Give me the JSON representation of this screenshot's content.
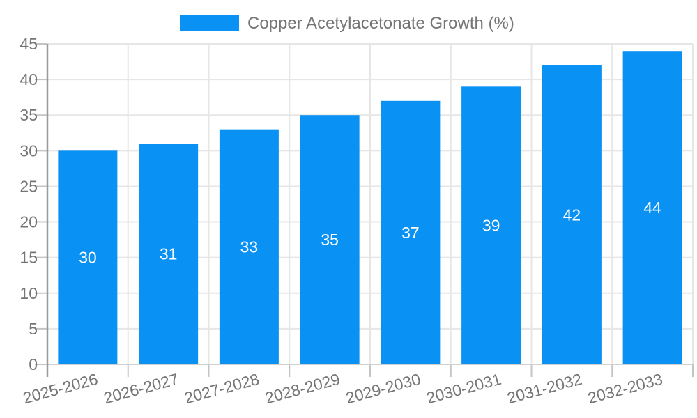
{
  "chart_data": {
    "type": "bar",
    "title": "Copper Acetylacetonate Growth (%)",
    "legend": {
      "label": "Copper Acetylacetonate Growth (%)",
      "position": "top-center"
    },
    "categories": [
      "2025-2026",
      "2026-2027",
      "2027-2028",
      "2028-2029",
      "2029-2030",
      "2030-2031",
      "2031-2032",
      "2032-2033"
    ],
    "series": [
      {
        "name": "Copper Acetylacetonate Growth (%)",
        "values": [
          30,
          31,
          33,
          35,
          37,
          39,
          42,
          44
        ]
      }
    ],
    "bar_value_labels": [
      "30",
      "31",
      "33",
      "35",
      "37",
      "39",
      "42",
      "44"
    ],
    "xlabel": "",
    "ylabel": "",
    "ylim": [
      0,
      45
    ],
    "yticks": [
      0,
      5,
      10,
      15,
      20,
      25,
      30,
      35,
      40,
      45
    ],
    "ytick_labels": [
      "0",
      "5",
      "10",
      "15",
      "20",
      "25",
      "30",
      "35",
      "40",
      "45"
    ],
    "grid": true,
    "x_label_rotation_deg": -15,
    "colors": {
      "bar_fill": "#0991f3",
      "grid_line": "#e6e6e6",
      "bottom_axis_line": "#d0d0d0",
      "y_axis_line": "#9a9a9a",
      "tick_line": "#c4c4c4",
      "axis_text": "#757575",
      "legend_text": "#757575",
      "bar_label_text": "#ffffff",
      "background": "#ffffff"
    }
  }
}
